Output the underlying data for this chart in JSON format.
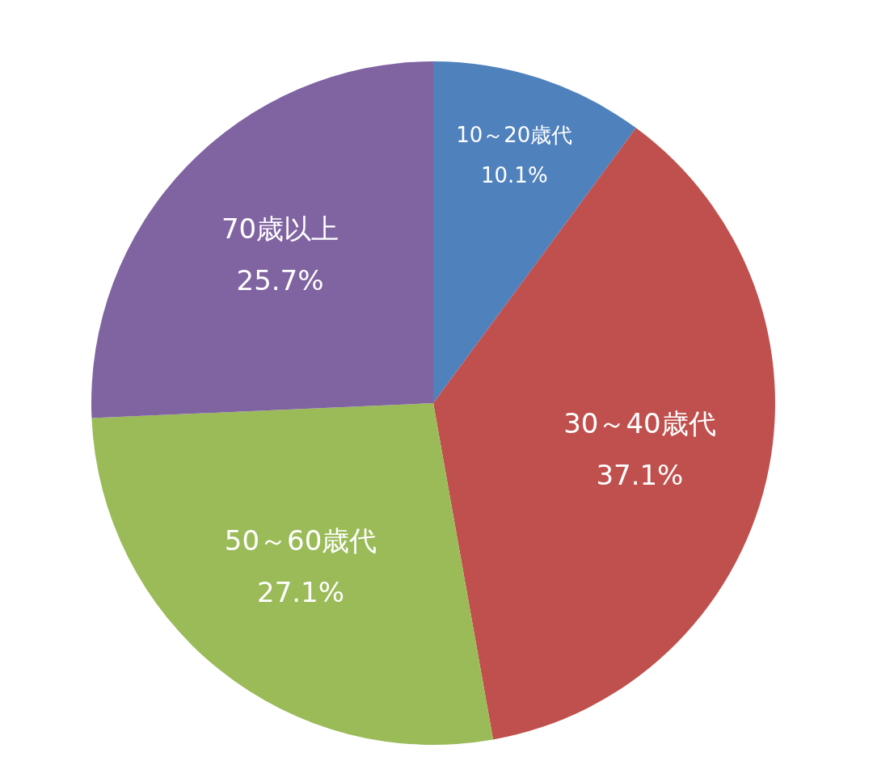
{
  "chart_data": {
    "type": "pie",
    "categories": [
      "10～20歳代",
      "30～40歳代",
      "50～60歳代",
      "70歳以上"
    ],
    "values": [
      10.1,
      37.1,
      27.1,
      25.7
    ],
    "value_labels": [
      "10.1%",
      "37.1%",
      "27.1%",
      "25.7%"
    ],
    "colors": [
      "#4f81bd",
      "#c0504d",
      "#9bbb59",
      "#8064a2"
    ],
    "legend": false
  }
}
